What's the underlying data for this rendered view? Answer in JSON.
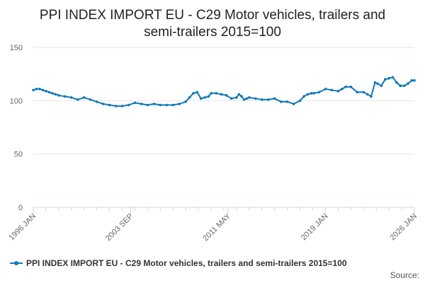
{
  "chart_data": {
    "type": "line",
    "title_line1": "PPI INDEX IMPORT EU - C29 Motor vehicles, trailers and",
    "title_line2": "semi-trailers 2015=100",
    "xlabel": "",
    "ylabel": "",
    "ylim": [
      0,
      150
    ],
    "yticks": [
      0,
      50,
      100,
      150
    ],
    "xlim": [
      1996.0,
      2026.0
    ],
    "xtick_labels": [
      "1996 JAN",
      "2003 SEP",
      "2011 MAY",
      "2019 JAN",
      "2026 JAN"
    ],
    "xtick_values": [
      1996.0,
      2003.667,
      2011.333,
      2019.0,
      2026.0
    ],
    "grid": true,
    "legend_position": "bottom-left",
    "series": [
      {
        "name": "PPI INDEX IMPORT EU - C29 Motor vehicles, trailers and semi-trailers 2015=100",
        "color": "#1078b9",
        "x": [
          1996.0,
          1996.25,
          1996.5,
          1996.75,
          1997.0,
          1997.25,
          1997.5,
          1997.75,
          1998.0,
          1998.5,
          1999.0,
          1999.5,
          2000.0,
          2000.5,
          2001.0,
          2001.5,
          2002.0,
          2002.5,
          2003.0,
          2003.5,
          2004.0,
          2004.5,
          2005.0,
          2005.5,
          2006.0,
          2006.5,
          2007.0,
          2007.5,
          2008.0,
          2008.3,
          2008.6,
          2008.9,
          2009.2,
          2009.5,
          2009.8,
          2010.0,
          2010.4,
          2010.8,
          2011.2,
          2011.6,
          2012.0,
          2012.2,
          2012.4,
          2012.6,
          2012.8,
          2013.0,
          2013.5,
          2014.0,
          2014.5,
          2015.0,
          2015.5,
          2016.0,
          2016.5,
          2017.0,
          2017.3,
          2017.6,
          2017.9,
          2018.1,
          2018.5,
          2019.0,
          2019.5,
          2020.0,
          2020.3,
          2020.6,
          2021.0,
          2021.5,
          2022.0,
          2022.3,
          2022.6,
          2022.9,
          2023.1,
          2023.4,
          2023.7,
          2024.0,
          2024.3,
          2024.6,
          2024.9,
          2025.2,
          2025.5,
          2025.8,
          2026.0
        ],
        "values": [
          110,
          111,
          111,
          110,
          109,
          108,
          107,
          106,
          105,
          104,
          103,
          101,
          103,
          101,
          99,
          97,
          96,
          95,
          95,
          96,
          98,
          97,
          96,
          97,
          96,
          96,
          96,
          97,
          99,
          103,
          107,
          108,
          102,
          103,
          104,
          107,
          107,
          106,
          105,
          102,
          103,
          106,
          104,
          101,
          102,
          103,
          102,
          101,
          101,
          102,
          99,
          99,
          97,
          100,
          104,
          106,
          107,
          107,
          108,
          111,
          110,
          109,
          111,
          113,
          113,
          108,
          108,
          106,
          104,
          117,
          116,
          114,
          120,
          121,
          122,
          117,
          114,
          114,
          116,
          119,
          119
        ]
      }
    ]
  },
  "legend": {
    "label": "PPI INDEX IMPORT EU - C29 Motor vehicles, trailers and semi-trailers 2015=100"
  },
  "source_label": "Source:"
}
